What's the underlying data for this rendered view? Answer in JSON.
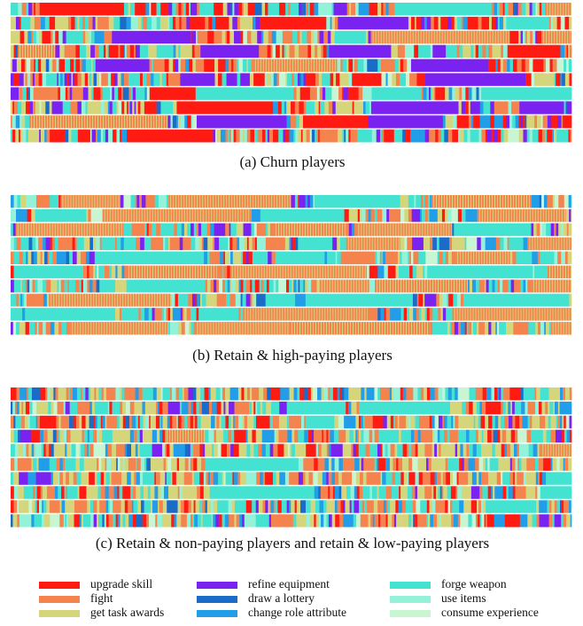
{
  "captions": [
    "(a)  Churn players",
    "(b)  Retain & high-paying players",
    "(c)  Retain & non-paying players and retain & low-paying players"
  ],
  "legend": [
    {
      "label": "upgrade skill",
      "color": "#ff1a12"
    },
    {
      "label": "fight",
      "color": "#f5834e"
    },
    {
      "label": "get task awards",
      "color": "#d5d67c"
    },
    {
      "label": "refine equipment",
      "color": "#7a22f0"
    },
    {
      "label": "draw a lottery",
      "color": "#1a6cc8"
    },
    {
      "label": "change role attribute",
      "color": "#229de8"
    },
    {
      "label": "forge weapon",
      "color": "#44e2d0"
    },
    {
      "label": "use items",
      "color": "#94f2d8"
    },
    {
      "label": "consume experience",
      "color": "#c8f6d2"
    }
  ]
}
